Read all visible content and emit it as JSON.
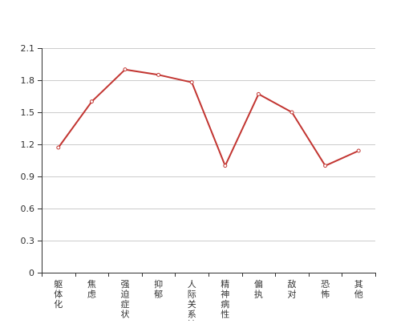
{
  "chart_data": {
    "type": "line",
    "categories": [
      "躯体化",
      "焦虑",
      "强迫症状",
      "抑郁",
      "人际关系敏感",
      "精神病性",
      "偏执",
      "敌对",
      "恐怖",
      "其他"
    ],
    "values": [
      1.17,
      1.6,
      1.9,
      1.85,
      1.78,
      1.0,
      1.67,
      1.5,
      1.0,
      1.14
    ],
    "y_ticks": [
      "0",
      "0.3",
      "0.6",
      "0.9",
      "1.2",
      "1.5",
      "1.8",
      "2.1"
    ],
    "ylim": [
      0,
      2.1
    ],
    "grid": true,
    "line_color": "#c23531",
    "title": "",
    "xlabel": "",
    "ylabel": ""
  }
}
